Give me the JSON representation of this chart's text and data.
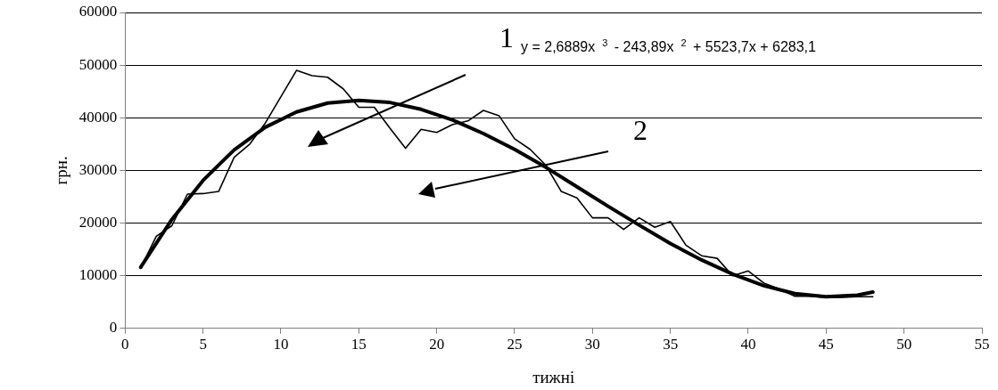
{
  "chart_data": {
    "type": "line",
    "xlabel": "тижні",
    "ylabel": "грн.",
    "xlim": [
      0,
      55
    ],
    "xticks": [
      0,
      5,
      10,
      15,
      20,
      25,
      30,
      35,
      40,
      45,
      50,
      55
    ],
    "ylim": [
      0,
      60000
    ],
    "yticks": [
      0,
      10000,
      20000,
      30000,
      40000,
      50000,
      60000
    ],
    "grid": "y",
    "legend": false,
    "marker": "none",
    "line_style": "solid",
    "series": [
      {
        "color": "#000000",
        "x": [
          1,
          2,
          3,
          4,
          5,
          6,
          7,
          8,
          9,
          10,
          11,
          12,
          13,
          14,
          15,
          16,
          17,
          18,
          19,
          20,
          21,
          22,
          23,
          24,
          25,
          26,
          27,
          28,
          29,
          30,
          31,
          32,
          33,
          34,
          35,
          36,
          37,
          38,
          39,
          40,
          41,
          42,
          43,
          44,
          45,
          46,
          47,
          48
        ],
        "values": [
          11500,
          17500,
          19500,
          25500,
          25600,
          26000,
          32500,
          35000,
          39000,
          44000,
          49000,
          48000,
          47700,
          45500,
          42000,
          42000,
          38000,
          34200,
          37800,
          37200,
          38700,
          39400,
          41400,
          40400,
          36000,
          34000,
          31000,
          26000,
          24800,
          21000,
          21000,
          18800,
          21000,
          19200,
          20300,
          15800,
          13800,
          13300,
          10000,
          10900,
          8600,
          7500,
          6100,
          6100,
          5900,
          5900,
          6000,
          6000
        ]
      },
      {
        "type": "line",
        "color": "#000000",
        "x": [
          1,
          3,
          5,
          7,
          9,
          11,
          13,
          15,
          17,
          19,
          21,
          23,
          25,
          27,
          29,
          31,
          33,
          35,
          37,
          39,
          41,
          43,
          45,
          47,
          48
        ],
        "values": [
          11600,
          20700,
          28100,
          33900,
          38200,
          41100,
          42800,
          43300,
          42900,
          41600,
          39600,
          37000,
          34000,
          30600,
          26900,
          23200,
          19600,
          16100,
          13000,
          10300,
          8100,
          6600,
          6000,
          6300,
          6900
        ]
      }
    ],
    "annotations": [
      "y = 2,6889x$^{3}$ - 243,89x$^{2}$ + 5523,7x + 6283,1",
      "1",
      "2"
    ]
  }
}
